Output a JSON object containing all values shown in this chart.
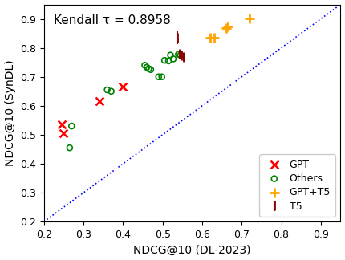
{
  "title_annotation": "Kendall τ = 0.8958",
  "xlabel": "NDCG@10 (DL-2023)",
  "ylabel": "NDCG@10 (SynDL)",
  "xlim": [
    0.2,
    0.95
  ],
  "ylim": [
    0.2,
    0.95
  ],
  "gpt_points": [
    [
      0.245,
      0.535
    ],
    [
      0.25,
      0.505
    ],
    [
      0.34,
      0.615
    ],
    [
      0.4,
      0.665
    ]
  ],
  "others_points": [
    [
      0.265,
      0.455
    ],
    [
      0.27,
      0.53
    ],
    [
      0.36,
      0.655
    ],
    [
      0.37,
      0.65
    ],
    [
      0.455,
      0.74
    ],
    [
      0.46,
      0.733
    ],
    [
      0.465,
      0.728
    ],
    [
      0.47,
      0.725
    ],
    [
      0.49,
      0.7
    ],
    [
      0.498,
      0.7
    ],
    [
      0.505,
      0.757
    ],
    [
      0.515,
      0.755
    ],
    [
      0.52,
      0.775
    ],
    [
      0.527,
      0.762
    ],
    [
      0.54,
      0.778
    ],
    [
      0.545,
      0.775
    ]
  ],
  "gptt5_points": [
    [
      0.62,
      0.835
    ],
    [
      0.63,
      0.835
    ],
    [
      0.66,
      0.868
    ],
    [
      0.665,
      0.873
    ],
    [
      0.72,
      0.902
    ]
  ],
  "t5_points": [
    [
      0.538,
      0.835
    ],
    [
      0.543,
      0.78
    ],
    [
      0.548,
      0.773
    ],
    [
      0.553,
      0.768
    ]
  ],
  "t5_yerr": [
    0.022,
    0.014,
    0.014,
    0.014
  ],
  "gpt_color": "#FF0000",
  "others_color": "#008000",
  "gptt5_color": "#FFA500",
  "t5_color": "#8B0000",
  "diag_color": "blue",
  "annotation_fontsize": 11,
  "tick_fontsize": 9,
  "label_fontsize": 10
}
